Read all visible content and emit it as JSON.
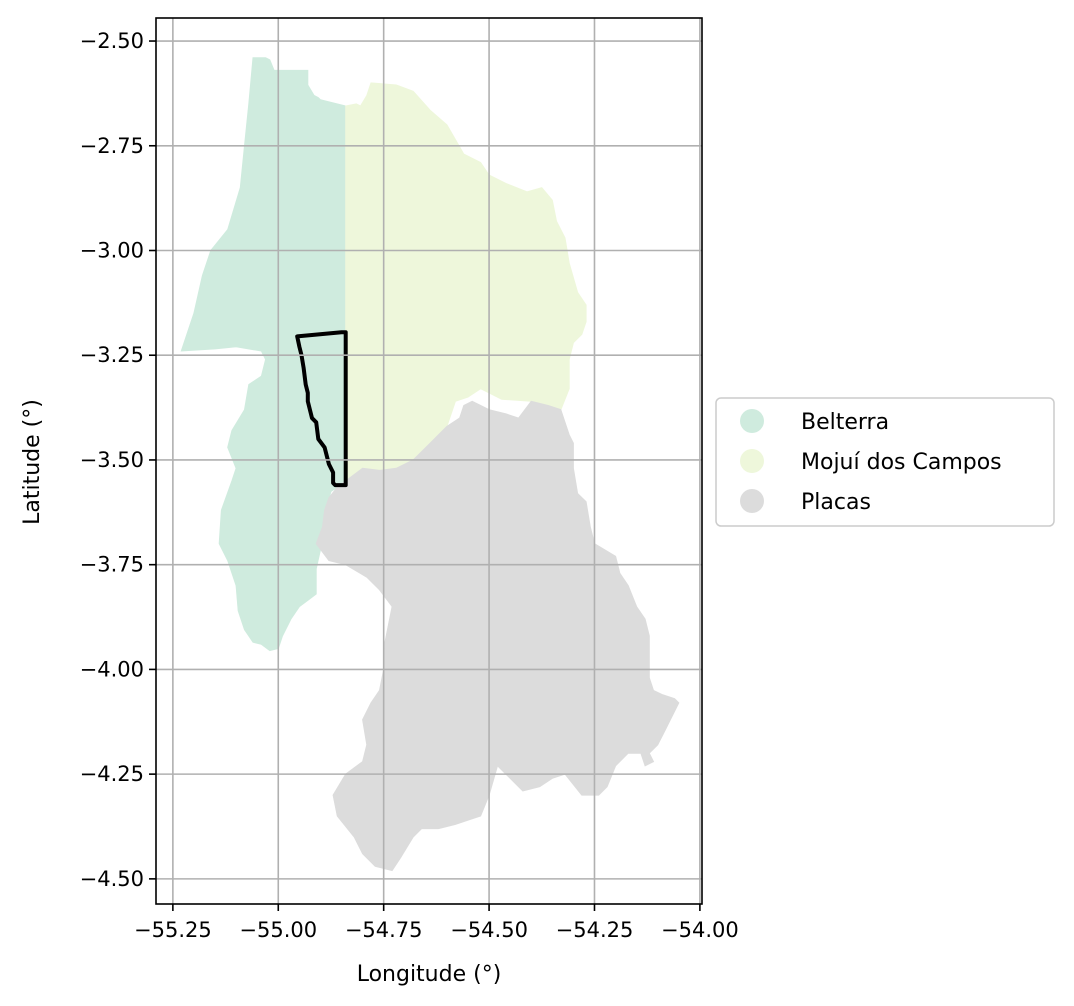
{
  "chart_data": {
    "type": "map",
    "xlabel": "Longitude (°)",
    "ylabel": "Latitude (°)",
    "xlim": [
      -55.29,
      -53.995
    ],
    "ylim": [
      -4.56,
      -2.445
    ],
    "grid": true,
    "x_ticks": [
      -55.25,
      -55.0,
      -54.75,
      -54.5,
      -54.25,
      -54.0
    ],
    "x_tick_labels": [
      "−55.25",
      "−55.00",
      "−54.75",
      "−54.50",
      "−54.25",
      "−54.00"
    ],
    "y_ticks": [
      -2.5,
      -2.75,
      -3.0,
      -3.25,
      -3.5,
      -3.75,
      -4.0,
      -4.25,
      -4.5
    ],
    "y_tick_labels": [
      "−2.50",
      "−2.75",
      "−3.00",
      "−3.25",
      "−3.50",
      "−3.75",
      "−4.00",
      "−4.25",
      "−4.50"
    ],
    "legend_position": "right",
    "regions": [
      {
        "name": "Belterra",
        "color": "#cfebde",
        "polygon": [
          [
            -55.06,
            -2.54
          ],
          [
            -55.03,
            -2.54
          ],
          [
            -55.02,
            -2.545
          ],
          [
            -55.01,
            -2.57
          ],
          [
            -54.93,
            -2.57
          ],
          [
            -54.93,
            -2.605
          ],
          [
            -54.915,
            -2.63
          ],
          [
            -54.905,
            -2.635
          ],
          [
            -54.9,
            -2.64
          ],
          [
            -54.84,
            -2.655
          ],
          [
            -54.84,
            -3.55
          ],
          [
            -54.86,
            -3.565
          ],
          [
            -54.875,
            -3.575
          ],
          [
            -54.885,
            -3.61
          ],
          [
            -54.88,
            -3.66
          ],
          [
            -54.9,
            -3.715
          ],
          [
            -54.91,
            -3.76
          ],
          [
            -54.91,
            -3.82
          ],
          [
            -54.93,
            -3.835
          ],
          [
            -54.95,
            -3.85
          ],
          [
            -54.97,
            -3.88
          ],
          [
            -54.99,
            -3.92
          ],
          [
            -55.0,
            -3.95
          ],
          [
            -55.02,
            -3.955
          ],
          [
            -55.04,
            -3.94
          ],
          [
            -55.06,
            -3.935
          ],
          [
            -55.08,
            -3.905
          ],
          [
            -55.095,
            -3.86
          ],
          [
            -55.1,
            -3.8
          ],
          [
            -55.12,
            -3.74
          ],
          [
            -55.14,
            -3.7
          ],
          [
            -55.135,
            -3.62
          ],
          [
            -55.11,
            -3.55
          ],
          [
            -55.1,
            -3.52
          ],
          [
            -55.12,
            -3.47
          ],
          [
            -55.11,
            -3.43
          ],
          [
            -55.08,
            -3.38
          ],
          [
            -55.07,
            -3.32
          ],
          [
            -55.04,
            -3.3
          ],
          [
            -55.03,
            -3.26
          ],
          [
            -55.04,
            -3.24
          ],
          [
            -55.1,
            -3.23
          ],
          [
            -55.15,
            -3.235
          ],
          [
            -55.23,
            -3.24
          ],
          [
            -55.2,
            -3.15
          ],
          [
            -55.18,
            -3.06
          ],
          [
            -55.16,
            -3.0
          ],
          [
            -55.12,
            -2.95
          ],
          [
            -55.09,
            -2.85
          ],
          [
            -55.08,
            -2.75
          ],
          [
            -55.07,
            -2.65
          ]
        ]
      },
      {
        "name": "Mojuí dos Campos",
        "color": "#eef7db",
        "polygon": [
          [
            -54.84,
            -2.655
          ],
          [
            -54.815,
            -2.65
          ],
          [
            -54.805,
            -2.655
          ],
          [
            -54.79,
            -2.63
          ],
          [
            -54.78,
            -2.6
          ],
          [
            -54.72,
            -2.605
          ],
          [
            -54.68,
            -2.62
          ],
          [
            -54.64,
            -2.665
          ],
          [
            -54.6,
            -2.7
          ],
          [
            -54.56,
            -2.77
          ],
          [
            -54.52,
            -2.79
          ],
          [
            -54.5,
            -2.82
          ],
          [
            -54.46,
            -2.84
          ],
          [
            -54.41,
            -2.86
          ],
          [
            -54.375,
            -2.85
          ],
          [
            -54.35,
            -2.88
          ],
          [
            -54.34,
            -2.93
          ],
          [
            -54.32,
            -2.97
          ],
          [
            -54.31,
            -3.03
          ],
          [
            -54.29,
            -3.1
          ],
          [
            -54.27,
            -3.13
          ],
          [
            -54.27,
            -3.17
          ],
          [
            -54.28,
            -3.2
          ],
          [
            -54.3,
            -3.22
          ],
          [
            -54.31,
            -3.26
          ],
          [
            -54.31,
            -3.33
          ],
          [
            -54.33,
            -3.38
          ],
          [
            -54.35,
            -3.39
          ],
          [
            -54.4,
            -3.36
          ],
          [
            -54.47,
            -3.355
          ],
          [
            -54.52,
            -3.33
          ],
          [
            -54.55,
            -3.35
          ],
          [
            -54.58,
            -3.36
          ],
          [
            -54.6,
            -3.42
          ],
          [
            -54.64,
            -3.46
          ],
          [
            -54.68,
            -3.5
          ],
          [
            -54.72,
            -3.52
          ],
          [
            -54.76,
            -3.525
          ],
          [
            -54.8,
            -3.52
          ],
          [
            -54.84,
            -3.55
          ]
        ]
      },
      {
        "name": "Placas",
        "color": "#dcdcdc",
        "polygon": [
          [
            -54.86,
            -3.565
          ],
          [
            -54.84,
            -3.55
          ],
          [
            -54.8,
            -3.52
          ],
          [
            -54.76,
            -3.525
          ],
          [
            -54.72,
            -3.52
          ],
          [
            -54.68,
            -3.5
          ],
          [
            -54.64,
            -3.46
          ],
          [
            -54.6,
            -3.42
          ],
          [
            -54.57,
            -3.4
          ],
          [
            -54.56,
            -3.37
          ],
          [
            -54.54,
            -3.36
          ],
          [
            -54.52,
            -3.37
          ],
          [
            -54.5,
            -3.38
          ],
          [
            -54.46,
            -3.39
          ],
          [
            -54.43,
            -3.4
          ],
          [
            -54.4,
            -3.36
          ],
          [
            -54.36,
            -3.37
          ],
          [
            -54.33,
            -3.38
          ],
          [
            -54.32,
            -3.41
          ],
          [
            -54.31,
            -3.44
          ],
          [
            -54.3,
            -3.46
          ],
          [
            -54.3,
            -3.52
          ],
          [
            -54.29,
            -3.58
          ],
          [
            -54.27,
            -3.6
          ],
          [
            -54.26,
            -3.66
          ],
          [
            -54.25,
            -3.7
          ],
          [
            -54.2,
            -3.73
          ],
          [
            -54.19,
            -3.77
          ],
          [
            -54.17,
            -3.8
          ],
          [
            -54.15,
            -3.85
          ],
          [
            -54.13,
            -3.88
          ],
          [
            -54.12,
            -3.92
          ],
          [
            -54.12,
            -4.02
          ],
          [
            -54.11,
            -4.05
          ],
          [
            -54.09,
            -4.06
          ],
          [
            -54.06,
            -4.07
          ],
          [
            -54.05,
            -4.08
          ],
          [
            -54.07,
            -4.12
          ],
          [
            -54.08,
            -4.14
          ],
          [
            -54.1,
            -4.18
          ],
          [
            -54.12,
            -4.2
          ],
          [
            -54.11,
            -4.22
          ],
          [
            -54.13,
            -4.23
          ],
          [
            -54.14,
            -4.2
          ],
          [
            -54.17,
            -4.2
          ],
          [
            -54.2,
            -4.23
          ],
          [
            -54.22,
            -4.28
          ],
          [
            -54.24,
            -4.3
          ],
          [
            -54.28,
            -4.3
          ],
          [
            -54.32,
            -4.25
          ],
          [
            -54.35,
            -4.26
          ],
          [
            -54.38,
            -4.28
          ],
          [
            -54.42,
            -4.29
          ],
          [
            -54.46,
            -4.25
          ],
          [
            -54.48,
            -4.23
          ],
          [
            -54.5,
            -4.3
          ],
          [
            -54.52,
            -4.35
          ],
          [
            -54.55,
            -4.36
          ],
          [
            -54.58,
            -4.37
          ],
          [
            -54.62,
            -4.38
          ],
          [
            -54.66,
            -4.38
          ],
          [
            -54.68,
            -4.4
          ],
          [
            -54.71,
            -4.45
          ],
          [
            -54.73,
            -4.48
          ],
          [
            -54.77,
            -4.47
          ],
          [
            -54.8,
            -4.44
          ],
          [
            -54.82,
            -4.4
          ],
          [
            -54.86,
            -4.35
          ],
          [
            -54.87,
            -4.3
          ],
          [
            -54.84,
            -4.25
          ],
          [
            -54.8,
            -4.22
          ],
          [
            -54.79,
            -4.18
          ],
          [
            -54.8,
            -4.12
          ],
          [
            -54.78,
            -4.08
          ],
          [
            -54.76,
            -4.05
          ],
          [
            -54.75,
            -4.0
          ],
          [
            -54.75,
            -3.95
          ],
          [
            -54.74,
            -3.9
          ],
          [
            -54.73,
            -3.85
          ],
          [
            -54.76,
            -3.81
          ],
          [
            -54.79,
            -3.78
          ],
          [
            -54.84,
            -3.75
          ],
          [
            -54.88,
            -3.74
          ],
          [
            -54.91,
            -3.7
          ],
          [
            -54.895,
            -3.66
          ],
          [
            -54.89,
            -3.62
          ],
          [
            -54.88,
            -3.59
          ]
        ]
      }
    ],
    "outline": {
      "color": "#000000",
      "polygon": [
        [
          -54.955,
          -3.205
        ],
        [
          -54.85,
          -3.195
        ],
        [
          -54.84,
          -3.195
        ],
        [
          -54.84,
          -3.56
        ],
        [
          -54.865,
          -3.56
        ],
        [
          -54.87,
          -3.555
        ],
        [
          -54.87,
          -3.53
        ],
        [
          -54.88,
          -3.51
        ],
        [
          -54.89,
          -3.47
        ],
        [
          -54.905,
          -3.45
        ],
        [
          -54.91,
          -3.41
        ],
        [
          -54.92,
          -3.4
        ],
        [
          -54.925,
          -3.38
        ],
        [
          -54.93,
          -3.36
        ],
        [
          -54.93,
          -3.34
        ],
        [
          -54.935,
          -3.32
        ],
        [
          -54.94,
          -3.28
        ],
        [
          -54.945,
          -3.25
        ],
        [
          -54.95,
          -3.23
        ]
      ]
    },
    "legend": [
      {
        "label": "Belterra",
        "color": "#cfebde"
      },
      {
        "label": "Mojuí dos Campos",
        "color": "#eef7db"
      },
      {
        "label": "Placas",
        "color": "#dcdcdc"
      }
    ]
  }
}
